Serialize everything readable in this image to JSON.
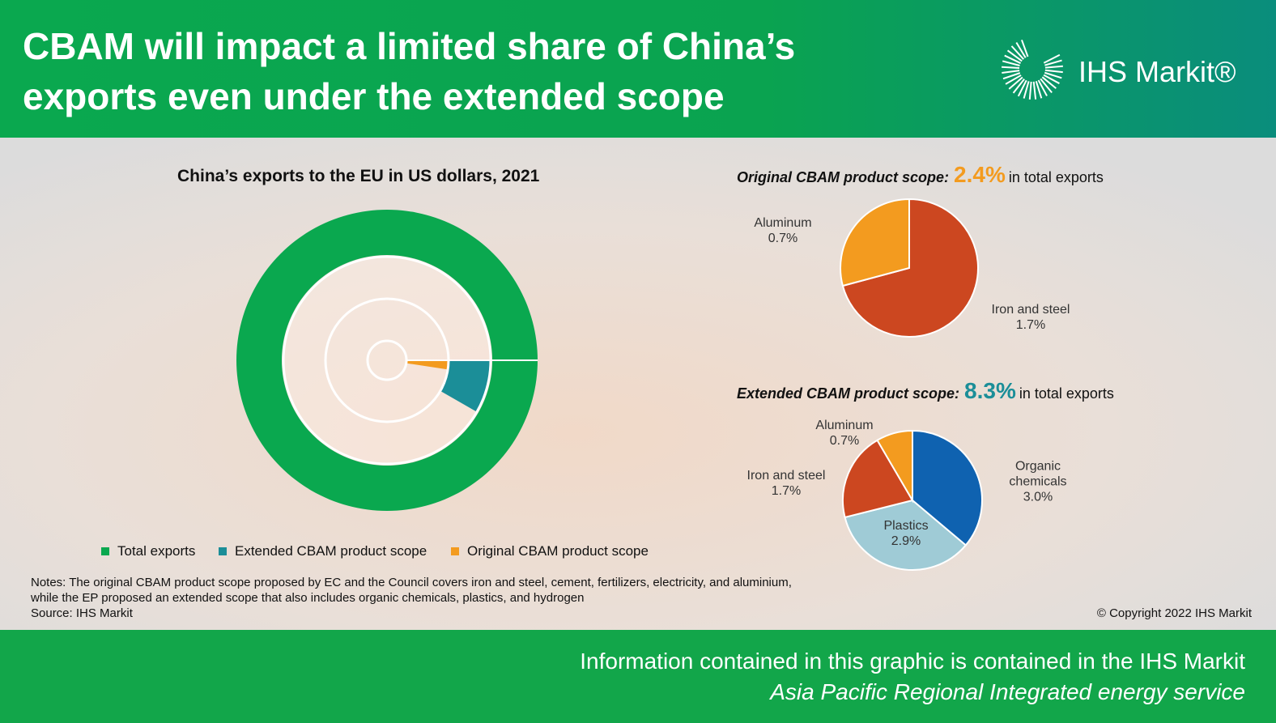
{
  "header": {
    "title": "CBAM will impact a limited share of China’s exports even under the extended scope",
    "logo": "IHS Markit®"
  },
  "chart_data": [
    {
      "type": "donut",
      "title": "China’s exports to the EU in US dollars, 2021",
      "series": [
        {
          "name": "Total exports",
          "color": "#0aa84f",
          "values": [
            100
          ]
        },
        {
          "name": "Extended CBAM product scope",
          "color": "#1b8e98",
          "values": [
            8.3
          ]
        },
        {
          "name": "Original CBAM product scope",
          "color": "#f39b1f",
          "values": [
            2.4
          ]
        }
      ]
    },
    {
      "type": "pie",
      "title": "Original CBAM product scope:",
      "total": "2.4%",
      "total_text": "in total exports",
      "categories": [
        "Iron and steel",
        "Aluminum"
      ],
      "values": [
        1.7,
        0.7
      ],
      "value_labels": [
        "1.7%",
        "0.7%"
      ],
      "colors": [
        "#cc4720",
        "#f39b1f"
      ]
    },
    {
      "type": "pie",
      "title": "Extended CBAM product scope:",
      "total": "8.3%",
      "total_text": "in total exports",
      "categories": [
        "Organic chemicals",
        "Plastics",
        "Iron and steel",
        "Aluminum"
      ],
      "values": [
        3.0,
        2.9,
        1.7,
        0.7
      ],
      "value_labels": [
        "3.0%",
        "2.9%",
        "1.7%",
        "0.7%"
      ],
      "colors": [
        "#0f62b0",
        "#9fcbd6",
        "#cc4720",
        "#f39b1f"
      ]
    }
  ],
  "notes": "Notes: The original CBAM product scope proposed by EC and the Council covers iron and steel, cement, fertilizers, electricity, and aluminium, while the EP proposed an extended scope that also includes organic chemicals, plastics, and hydrogen",
  "source": "Source: IHS Markit",
  "copyright": "© Copyright 2022 IHS Markit",
  "footer": {
    "line1": "Information contained in this graphic is contained in the IHS Markit",
    "line2": "Asia Pacific Regional Integrated energy service"
  }
}
